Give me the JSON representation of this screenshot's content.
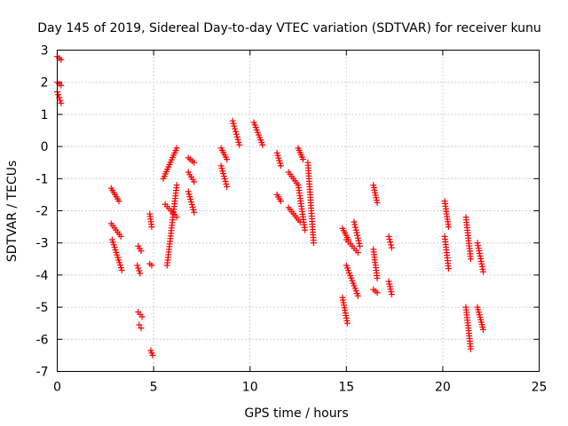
{
  "chart_data": {
    "type": "scatter",
    "title": "Day 145 of 2019, Sidereal Day-to-day VTEC variation (SDTVAR) for receiver kunu",
    "xlabel": "GPS time / hours",
    "ylabel": "SDTVAR / TECUs",
    "xlim": [
      0,
      25
    ],
    "ylim": [
      -7,
      3
    ],
    "xticks": [
      0,
      5,
      10,
      15,
      20,
      25
    ],
    "yticks": [
      3,
      2,
      1,
      0,
      -1,
      -2,
      -3,
      -4,
      -5,
      -6,
      -7
    ],
    "grid": true,
    "marker": "plus",
    "color": "#ff0000",
    "segments": [
      {
        "x": [
          0.0,
          0.2
        ],
        "y": [
          2.8,
          2.7
        ]
      },
      {
        "x": [
          0.0,
          0.2
        ],
        "y": [
          2.0,
          1.9
        ]
      },
      {
        "x": [
          0.0,
          0.2
        ],
        "y": [
          1.7,
          1.35
        ]
      },
      {
        "x": [
          2.8,
          3.2
        ],
        "y": [
          -1.3,
          -1.7
        ]
      },
      {
        "x": [
          2.8,
          3.3
        ],
        "y": [
          -2.4,
          -2.8
        ]
      },
      {
        "x": [
          2.85,
          3.35
        ],
        "y": [
          -2.9,
          -3.85
        ]
      },
      {
        "x": [
          4.2,
          4.35
        ],
        "y": [
          -3.1,
          -3.25
        ]
      },
      {
        "x": [
          4.15,
          4.3
        ],
        "y": [
          -3.7,
          -3.95
        ]
      },
      {
        "x": [
          4.2,
          4.4
        ],
        "y": [
          -5.15,
          -5.3
        ]
      },
      {
        "x": [
          4.25,
          4.35
        ],
        "y": [
          -5.55,
          -5.65
        ]
      },
      {
        "x": [
          4.8,
          4.9
        ],
        "y": [
          -2.1,
          -2.5
        ]
      },
      {
        "x": [
          4.8,
          4.9
        ],
        "y": [
          -3.65,
          -3.7
        ]
      },
      {
        "x": [
          4.85,
          4.95
        ],
        "y": [
          -6.35,
          -6.5
        ]
      },
      {
        "x": [
          5.5,
          6.2
        ],
        "y": [
          -1.0,
          -0.05
        ]
      },
      {
        "x": [
          5.6,
          6.2
        ],
        "y": [
          -1.8,
          -2.2
        ]
      },
      {
        "x": [
          5.7,
          6.2
        ],
        "y": [
          -3.7,
          -1.2
        ]
      },
      {
        "x": [
          6.8,
          7.1
        ],
        "y": [
          -0.35,
          -0.5
        ]
      },
      {
        "x": [
          6.8,
          7.1
        ],
        "y": [
          -0.8,
          -1.1
        ]
      },
      {
        "x": [
          6.8,
          7.1
        ],
        "y": [
          -1.4,
          -2.05
        ]
      },
      {
        "x": [
          8.5,
          8.8
        ],
        "y": [
          -0.05,
          -0.4
        ]
      },
      {
        "x": [
          8.5,
          8.8
        ],
        "y": [
          -0.6,
          -1.25
        ]
      },
      {
        "x": [
          9.1,
          9.45
        ],
        "y": [
          0.8,
          0.05
        ]
      },
      {
        "x": [
          10.2,
          10.65
        ],
        "y": [
          0.75,
          0.05
        ]
      },
      {
        "x": [
          11.4,
          11.6
        ],
        "y": [
          -0.2,
          -0.6
        ]
      },
      {
        "x": [
          11.4,
          11.6
        ],
        "y": [
          -1.5,
          -1.7
        ]
      },
      {
        "x": [
          12.0,
          12.5
        ],
        "y": [
          -0.8,
          -1.2
        ]
      },
      {
        "x": [
          12.0,
          12.6
        ],
        "y": [
          -1.9,
          -2.35
        ]
      },
      {
        "x": [
          12.5,
          12.75
        ],
        "y": [
          -0.05,
          -0.4
        ]
      },
      {
        "x": [
          12.5,
          12.85
        ],
        "y": [
          -1.2,
          -2.6
        ]
      },
      {
        "x": [
          13.0,
          13.3
        ],
        "y": [
          -0.5,
          -3.0
        ]
      },
      {
        "x": [
          14.8,
          15.1
        ],
        "y": [
          -2.55,
          -2.9
        ]
      },
      {
        "x": [
          14.8,
          15.05
        ],
        "y": [
          -4.7,
          -5.5
        ]
      },
      {
        "x": [
          15.0,
          15.6
        ],
        "y": [
          -3.7,
          -4.65
        ]
      },
      {
        "x": [
          15.0,
          15.6
        ],
        "y": [
          -2.9,
          -3.3
        ]
      },
      {
        "x": [
          15.4,
          15.7
        ],
        "y": [
          -2.35,
          -3.1
        ]
      },
      {
        "x": [
          16.4,
          16.6
        ],
        "y": [
          -1.2,
          -1.75
        ]
      },
      {
        "x": [
          16.4,
          16.6
        ],
        "y": [
          -3.2,
          -4.1
        ]
      },
      {
        "x": [
          16.4,
          16.6
        ],
        "y": [
          -4.45,
          -4.55
        ]
      },
      {
        "x": [
          17.2,
          17.35
        ],
        "y": [
          -2.8,
          -3.15
        ]
      },
      {
        "x": [
          17.2,
          17.35
        ],
        "y": [
          -4.2,
          -4.6
        ]
      },
      {
        "x": [
          20.1,
          20.3
        ],
        "y": [
          -1.7,
          -2.5
        ]
      },
      {
        "x": [
          20.1,
          20.3
        ],
        "y": [
          -2.8,
          -3.8
        ]
      },
      {
        "x": [
          21.2,
          21.45
        ],
        "y": [
          -2.2,
          -3.5
        ]
      },
      {
        "x": [
          21.2,
          21.45
        ],
        "y": [
          -5.0,
          -6.3
        ]
      },
      {
        "x": [
          21.8,
          22.1
        ],
        "y": [
          -3.0,
          -3.9
        ]
      },
      {
        "x": [
          21.8,
          22.1
        ],
        "y": [
          -5.0,
          -5.7
        ]
      }
    ]
  }
}
